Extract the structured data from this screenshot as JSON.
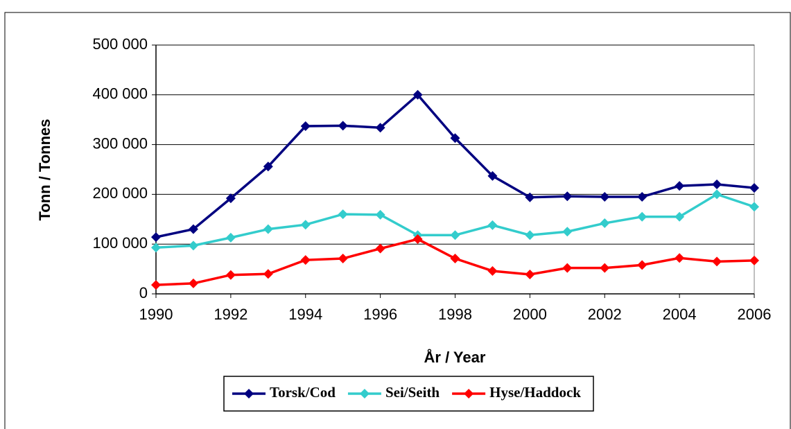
{
  "chart_data": {
    "type": "line",
    "x_label": "År / Year",
    "y_label": "Tonn / Tonnes",
    "x": [
      1990,
      1991,
      1992,
      1993,
      1994,
      1995,
      1996,
      1997,
      1998,
      1999,
      2000,
      2001,
      2002,
      2003,
      2004,
      2005,
      2006
    ],
    "series": [
      {
        "name": "Torsk/Cod",
        "color": "#000080",
        "values": [
          114000,
          130000,
          192000,
          256000,
          337000,
          338000,
          334000,
          400000,
          313000,
          237000,
          194000,
          196000,
          195000,
          195000,
          217000,
          220000,
          213000
        ]
      },
      {
        "name": "Sei/Seith",
        "color": "#33CCCC",
        "values": [
          93000,
          97000,
          113000,
          130000,
          139000,
          160000,
          159000,
          118000,
          118000,
          138000,
          118000,
          125000,
          142000,
          155000,
          155000,
          200000,
          175000
        ]
      },
      {
        "name": "Hyse/Haddock",
        "color": "#FF0000",
        "values": [
          18000,
          21000,
          38000,
          40000,
          68000,
          71000,
          91000,
          110000,
          71000,
          46000,
          39000,
          52000,
          52000,
          58000,
          72000,
          65000,
          67000
        ]
      }
    ],
    "xlim": [
      1990,
      2006
    ],
    "xticks": [
      1990,
      1992,
      1994,
      1996,
      1998,
      2000,
      2002,
      2004,
      2006
    ],
    "ylim": [
      0,
      500000
    ],
    "yticks": [
      0,
      {
        "value": 100000,
        "label": "100 000"
      },
      {
        "value": 200000,
        "label": "200 000"
      },
      {
        "value": 300000,
        "label": "300 000"
      },
      {
        "value": 400000,
        "label": "400 000"
      },
      {
        "value": 500000,
        "label": "500 000"
      }
    ],
    "grid": true,
    "legend": "bottom"
  }
}
